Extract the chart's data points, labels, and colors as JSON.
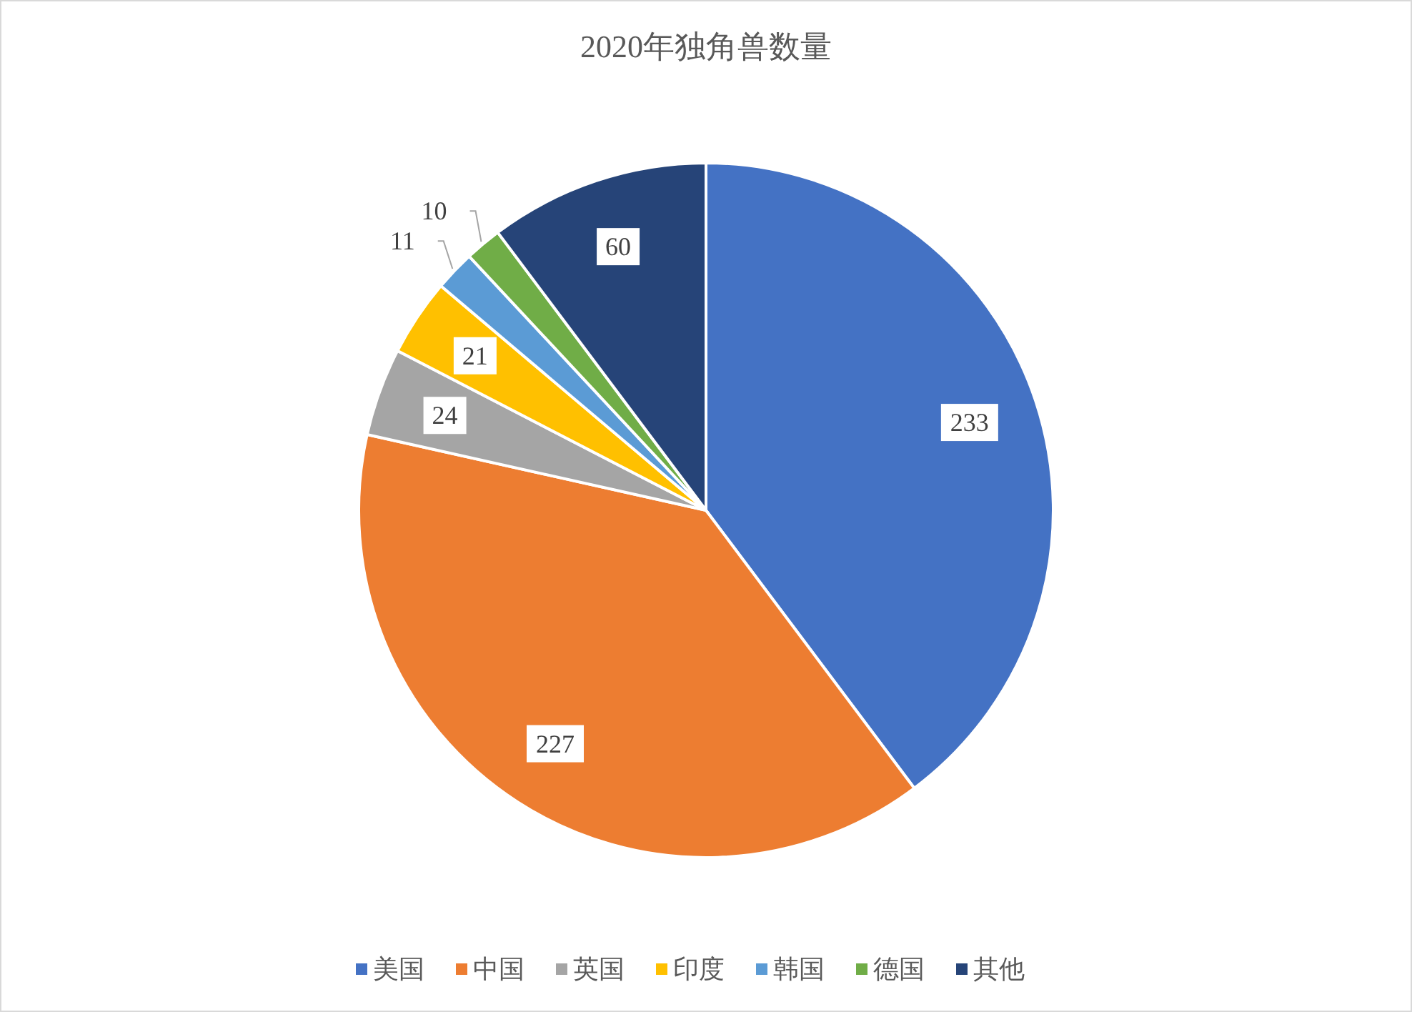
{
  "chart_data": {
    "type": "pie",
    "title": "2020年独角兽数量",
    "categories": [
      "美国",
      "中国",
      "英国",
      "印度",
      "韩国",
      "德国",
      "其他"
    ],
    "values": [
      233,
      227,
      24,
      21,
      11,
      10,
      60
    ],
    "colors": [
      "#4472c4",
      "#ed7d31",
      "#a5a5a5",
      "#ffc000",
      "#5b9bd5",
      "#70ad47",
      "#264478"
    ],
    "data_labels": true,
    "legend": "bottom"
  }
}
